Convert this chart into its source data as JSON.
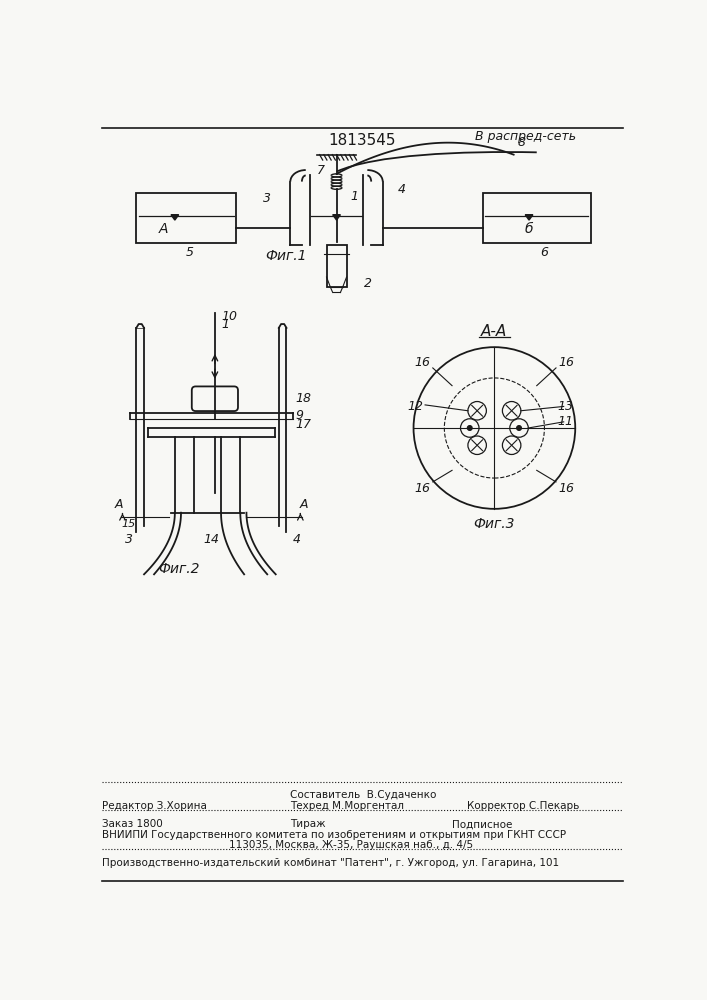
{
  "patent_number": "1813545",
  "background_color": "#f8f8f5",
  "line_color": "#1a1a1a",
  "fig1_caption": "Фиг.1",
  "fig2_caption": "Фиг.2",
  "fig3_caption": "Фиг.3",
  "fig3_label": "А-А",
  "label_v_raspr": "В распред-сеть",
  "footer_line1_left": "Редактор З.Хорина",
  "footer_sestavitel": "Составитель  В.Судаченко",
  "footer_tekhred": "Техред М.Моргентал",
  "footer_line1_right": "Корректор С.Пекарь",
  "footer_line2_col1": "Заказ 1800",
  "footer_line2_col2": "Тираж",
  "footer_line2_col3": "Подписное",
  "footer_line3": "ВНИИПИ Государственного комитета по изобретениям и открытиям при ГКНТ СССР",
  "footer_line4": "113035, Москва, Ж-35, Раушская наб., д. 4/5",
  "footer_line5": "Производственно-издательский комбинат \"Патент\", г. Ужгород, ул. Гагарина, 101"
}
